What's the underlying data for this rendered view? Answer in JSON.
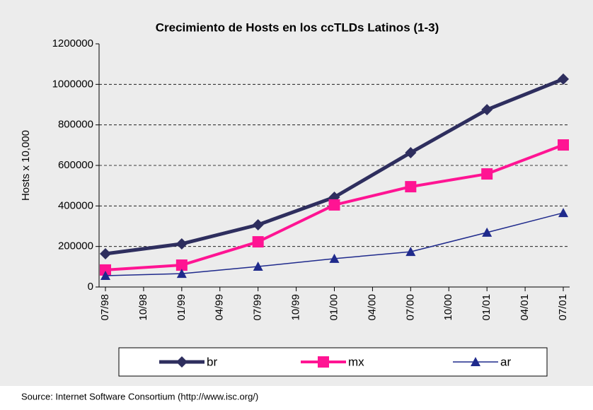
{
  "chart_data": {
    "type": "line",
    "title": "Crecimiento de Hosts en los ccTLDs Latinos (1-3)",
    "y_label": "Hosts x 10,000",
    "source": "Source: Internet Software Consortium (http://www.isc.org/)",
    "xticks": [
      "07/98",
      "10/98",
      "01/99",
      "04/99",
      "07/99",
      "10/99",
      "01/00",
      "04/00",
      "07/00",
      "10/00",
      "01/01",
      "04/01",
      "07/01"
    ],
    "x": [
      "07/98",
      "01/99",
      "07/99",
      "01/00",
      "07/00",
      "01/01",
      "07/01"
    ],
    "series": [
      {
        "name": "br",
        "color": "#2e2e5e",
        "marker": "diamond",
        "values": [
          164000,
          213000,
          307000,
          443000,
          663000,
          875000,
          1026000
        ]
      },
      {
        "name": "mx",
        "color": "#ff1493",
        "marker": "square",
        "values": [
          84000,
          108000,
          223000,
          405000,
          495000,
          558000,
          701000
        ]
      },
      {
        "name": "ar",
        "color": "#1f2a8c",
        "marker": "triangle",
        "values": [
          56000,
          66000,
          101000,
          140000,
          174000,
          269000,
          366000
        ]
      }
    ],
    "ylim": [
      0,
      1200000
    ],
    "yticks": [
      0,
      200000,
      400000,
      600000,
      800000,
      1000000,
      1200000
    ],
    "grid": true,
    "legend": "bottom"
  }
}
